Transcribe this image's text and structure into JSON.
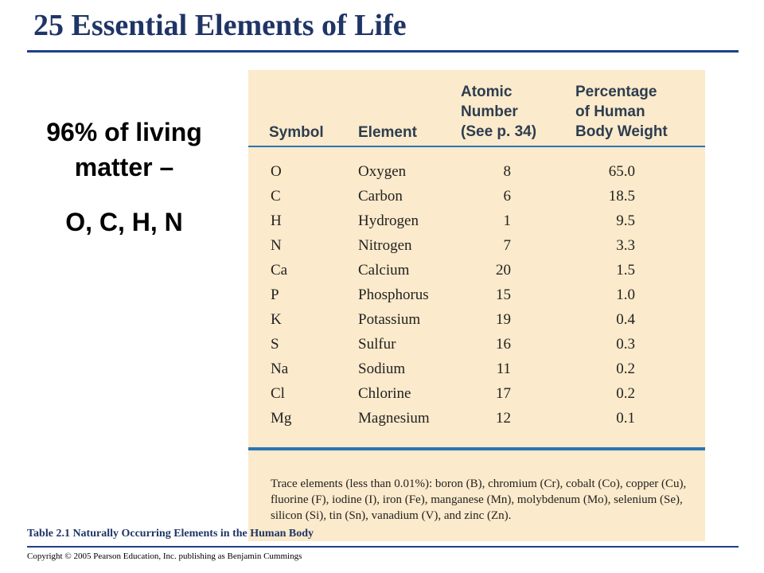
{
  "slide": {
    "title": "25 Essential Elements of Life",
    "side_main": "96% of living matter –",
    "side_sub": "O, C, H, N",
    "caption": "Table 2.1 Naturally Occurring Elements in the Human Body",
    "copyright": "Copyright © 2005 Pearson Education, Inc. publishing as Benjamin Cummings"
  },
  "table": {
    "headers": {
      "symbol": "Symbol",
      "element": "Element",
      "atomic": "Atomic\nNumber\n(See p. 34)",
      "percentage": "Percentage\nof Human\nBody Weight"
    },
    "rows": [
      {
        "symbol": "O",
        "element": "Oxygen",
        "atomic": "8",
        "pct": "65.0"
      },
      {
        "symbol": "C",
        "element": "Carbon",
        "atomic": "6",
        "pct": "18.5"
      },
      {
        "symbol": "H",
        "element": "Hydrogen",
        "atomic": "1",
        "pct": "9.5"
      },
      {
        "symbol": "N",
        "element": "Nitrogen",
        "atomic": "7",
        "pct": "3.3"
      },
      {
        "symbol": "Ca",
        "element": "Calcium",
        "atomic": "20",
        "pct": "1.5"
      },
      {
        "symbol": "P",
        "element": "Phosphorus",
        "atomic": "15",
        "pct": "1.0"
      },
      {
        "symbol": "K",
        "element": "Potassium",
        "atomic": "19",
        "pct": "0.4"
      },
      {
        "symbol": "S",
        "element": "Sulfur",
        "atomic": "16",
        "pct": "0.3"
      },
      {
        "symbol": "Na",
        "element": "Sodium",
        "atomic": "11",
        "pct": "0.2"
      },
      {
        "symbol": "Cl",
        "element": "Chlorine",
        "atomic": "17",
        "pct": "0.2"
      },
      {
        "symbol": "Mg",
        "element": "Magnesium",
        "atomic": "12",
        "pct": "0.1"
      }
    ],
    "trace_note": "Trace elements (less than 0.01%): boron (B), chromium (Cr), cobalt (Co), copper (Cu), fluorine (F), iodine (I), iron (Fe), manganese (Mn), molybdenum (Mo), selenium (Se), silicon (Si), tin (Sn), vanadium (V), and zinc (Zn)."
  },
  "colors": {
    "title": "#1f3566",
    "rule": "#1e3f8a",
    "panel_bg": "#fbeacb",
    "table_rule": "#2b74b6"
  }
}
